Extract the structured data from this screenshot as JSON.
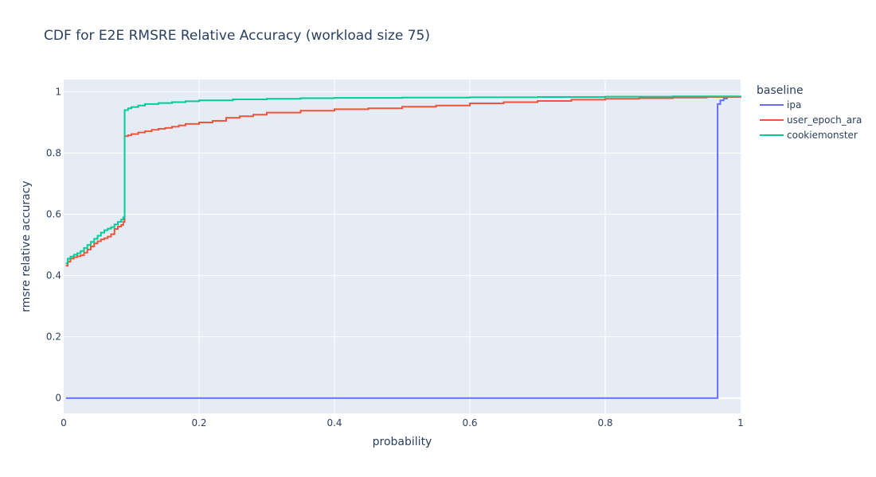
{
  "chart_data": {
    "type": "line",
    "line_shape": "step",
    "title": "CDF for E2E RMSRE Relative Accuracy (workload size 75)",
    "xlabel": "probability",
    "ylabel": "rmsre relative accuracy",
    "xlim": [
      0,
      1
    ],
    "ylim": [
      -0.05,
      1.04
    ],
    "xticks": [
      0,
      0.2,
      0.4,
      0.6,
      0.8,
      1
    ],
    "xtick_labels": [
      "0",
      "0.2",
      "0.4",
      "0.6",
      "0.8",
      "1"
    ],
    "yticks": [
      0,
      0.2,
      0.4,
      0.6,
      0.8,
      1
    ],
    "ytick_labels": [
      "0",
      "0.2",
      "0.4",
      "0.6",
      "0.8",
      "1"
    ],
    "grid": true,
    "legend_title": "baseline",
    "legend_position": "top-right",
    "series": [
      {
        "name": "ipa",
        "color": "#636efa",
        "x": [
          0.003,
          0.966,
          0.966,
          0.97,
          0.975,
          0.98,
          1.0
        ],
        "y": [
          0,
          0,
          0.96,
          0.972,
          0.978,
          0.983,
          0.986
        ]
      },
      {
        "name": "user_epoch_ara",
        "color": "#ef553b",
        "x": [
          0.003,
          0.006,
          0.01,
          0.015,
          0.02,
          0.025,
          0.03,
          0.035,
          0.04,
          0.045,
          0.05,
          0.055,
          0.06,
          0.065,
          0.07,
          0.075,
          0.08,
          0.085,
          0.088,
          0.09,
          0.09,
          0.095,
          0.1,
          0.11,
          0.12,
          0.13,
          0.14,
          0.15,
          0.16,
          0.17,
          0.18,
          0.2,
          0.22,
          0.24,
          0.26,
          0.28,
          0.3,
          0.35,
          0.4,
          0.45,
          0.5,
          0.55,
          0.6,
          0.65,
          0.7,
          0.75,
          0.8,
          0.85,
          0.9,
          0.95,
          1.0
        ],
        "y": [
          0.432,
          0.445,
          0.455,
          0.46,
          0.463,
          0.466,
          0.475,
          0.485,
          0.495,
          0.505,
          0.512,
          0.518,
          0.522,
          0.527,
          0.535,
          0.552,
          0.56,
          0.565,
          0.575,
          0.58,
          0.855,
          0.858,
          0.862,
          0.867,
          0.871,
          0.876,
          0.879,
          0.882,
          0.886,
          0.89,
          0.895,
          0.9,
          0.905,
          0.915,
          0.92,
          0.925,
          0.932,
          0.938,
          0.943,
          0.946,
          0.951,
          0.955,
          0.962,
          0.966,
          0.97,
          0.974,
          0.977,
          0.979,
          0.981,
          0.983,
          0.985
        ]
      },
      {
        "name": "cookiemonster",
        "color": "#00cc96",
        "x": [
          0.003,
          0.006,
          0.01,
          0.015,
          0.02,
          0.025,
          0.03,
          0.035,
          0.04,
          0.045,
          0.05,
          0.055,
          0.06,
          0.065,
          0.07,
          0.075,
          0.08,
          0.085,
          0.088,
          0.09,
          0.09,
          0.095,
          0.1,
          0.11,
          0.12,
          0.14,
          0.16,
          0.18,
          0.2,
          0.25,
          0.3,
          0.35,
          0.4,
          0.5,
          0.6,
          0.7,
          0.8,
          0.9,
          1.0
        ],
        "y": [
          0.44,
          0.455,
          0.462,
          0.468,
          0.473,
          0.48,
          0.49,
          0.5,
          0.51,
          0.52,
          0.53,
          0.54,
          0.548,
          0.553,
          0.558,
          0.567,
          0.575,
          0.583,
          0.59,
          0.6,
          0.94,
          0.946,
          0.95,
          0.955,
          0.96,
          0.963,
          0.966,
          0.969,
          0.972,
          0.975,
          0.977,
          0.979,
          0.98,
          0.981,
          0.982,
          0.983,
          0.984,
          0.985,
          0.986
        ]
      }
    ]
  }
}
